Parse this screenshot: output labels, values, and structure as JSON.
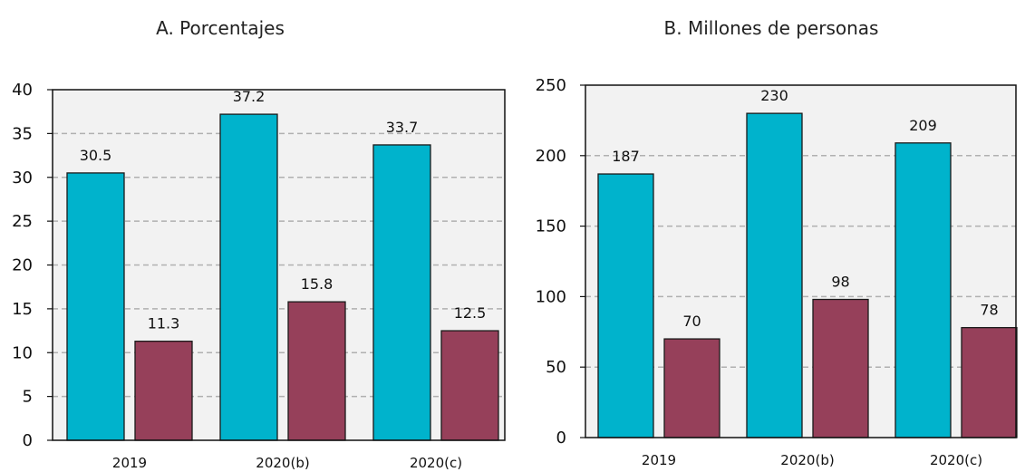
{
  "chart_data": [
    {
      "type": "bar",
      "title": "A. Porcentajes",
      "categories": [
        "2019",
        "2020(b)",
        "2020(c)"
      ],
      "series": [
        {
          "values": [
            30.5,
            37.2,
            33.7
          ],
          "color": "#00b3cc"
        },
        {
          "values": [
            11.3,
            15.8,
            12.5
          ],
          "color": "#96405a"
        }
      ],
      "labels": [
        [
          "30.5",
          "37.2",
          "33.7"
        ],
        [
          "11.3",
          "15.8",
          "12.5"
        ]
      ],
      "yticks": [
        "0",
        "5",
        "10",
        "15",
        "20",
        "25",
        "30",
        "35",
        "40"
      ],
      "ylim": [
        0,
        40
      ],
      "grid": true,
      "plot_background": "#f2f2f2"
    },
    {
      "type": "bar",
      "title": "B. Millones de personas",
      "categories": [
        "2019",
        "2020(b)",
        "2020(c)"
      ],
      "series": [
        {
          "values": [
            187,
            230,
            209
          ],
          "color": "#00b3cc"
        },
        {
          "values": [
            70,
            98,
            78
          ],
          "color": "#96405a"
        }
      ],
      "labels": [
        [
          "187",
          "230",
          "209"
        ],
        [
          "70",
          "98",
          "78"
        ]
      ],
      "yticks": [
        "0",
        "50",
        "100",
        "150",
        "200",
        "250"
      ],
      "ylim": [
        0,
        250
      ],
      "grid": true,
      "plot_background": "#f2f2f2"
    }
  ]
}
